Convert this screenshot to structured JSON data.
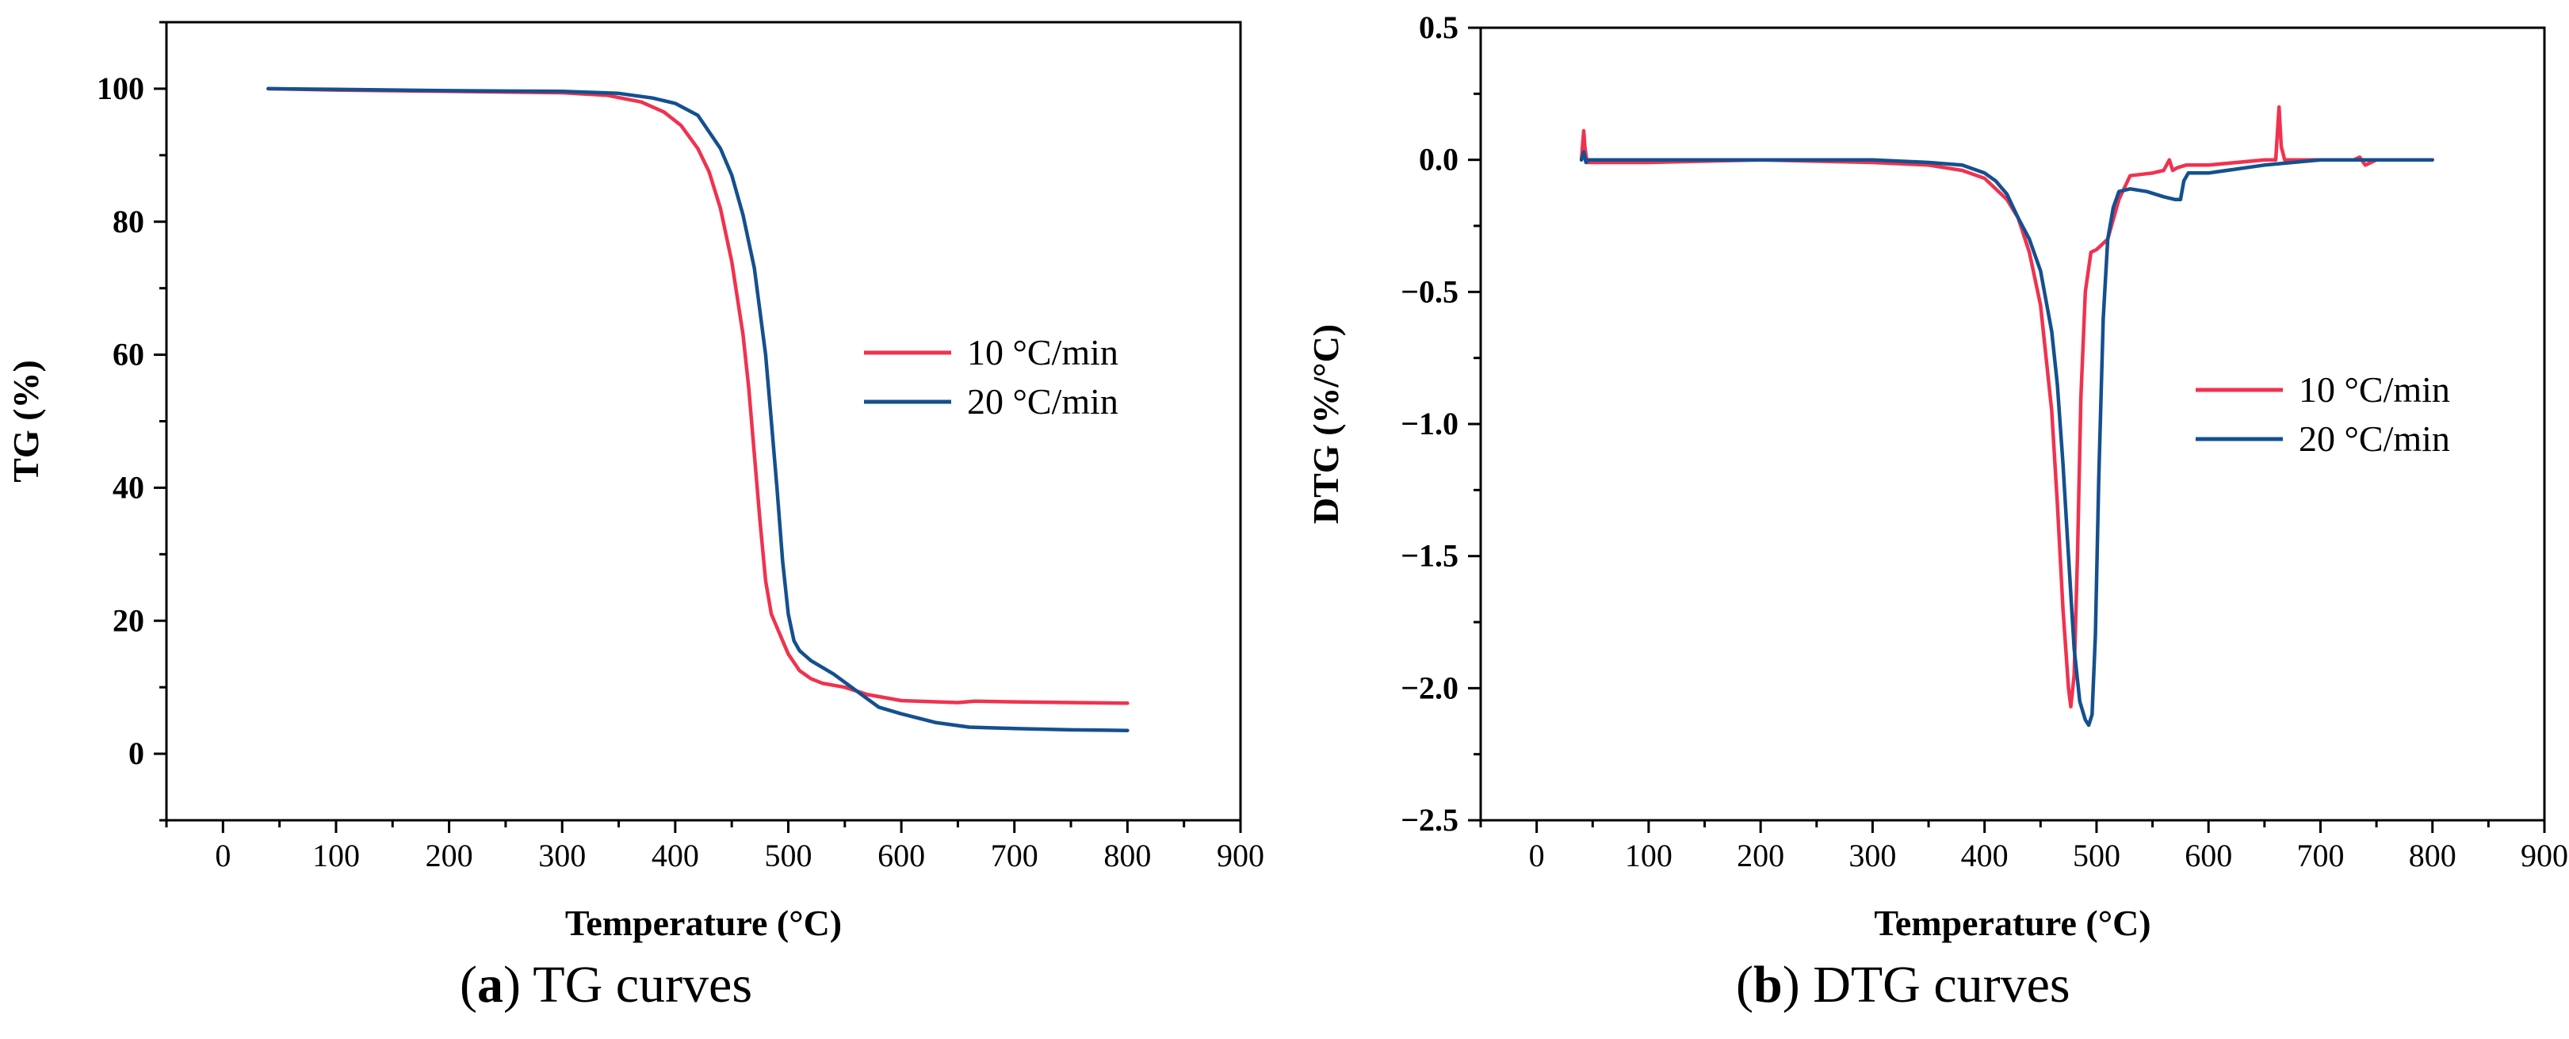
{
  "charts": [
    {
      "type": "line",
      "panel": "a",
      "ylabel": "TG (%)",
      "xlabel": "Temperature (°C)",
      "xlim": [
        -50,
        900
      ],
      "ylim": [
        -10,
        110
      ],
      "xticks": [
        0,
        100,
        200,
        300,
        400,
        500,
        600,
        700,
        800,
        900
      ],
      "yticks": [
        0,
        20,
        40,
        60,
        80,
        100
      ],
      "legend_location": "right-center",
      "series": [
        {
          "name": "10 °C/min",
          "color": "#f0324f",
          "x": [
            40,
            100,
            200,
            300,
            340,
            370,
            390,
            405,
            420,
            430,
            440,
            450,
            460,
            465,
            470,
            475,
            480,
            485,
            490,
            495,
            500,
            510,
            520,
            530,
            550,
            570,
            600,
            650,
            665,
            700,
            750,
            800
          ],
          "y": [
            100,
            99.8,
            99.6,
            99.4,
            99,
            98,
            96.5,
            94.5,
            91,
            87.5,
            82,
            74,
            63,
            55,
            45,
            35,
            26,
            21,
            19,
            17,
            15,
            12.5,
            11.3,
            10.6,
            10,
            8.9,
            8,
            7.7,
            7.9,
            7.8,
            7.7,
            7.6
          ]
        },
        {
          "name": "20 °C/min",
          "color": "#14508f",
          "x": [
            40,
            100,
            200,
            300,
            350,
            380,
            400,
            420,
            440,
            450,
            460,
            470,
            480,
            485,
            490,
            495,
            500,
            505,
            510,
            520,
            540,
            560,
            580,
            600,
            630,
            660,
            700,
            750,
            800
          ],
          "y": [
            100,
            99.9,
            99.7,
            99.6,
            99.3,
            98.6,
            97.8,
            96,
            91,
            87,
            81,
            73,
            60,
            50,
            40,
            29,
            21,
            17,
            15.5,
            14,
            12,
            9.5,
            7,
            6,
            4.7,
            4,
            3.8,
            3.6,
            3.5
          ]
        }
      ]
    },
    {
      "type": "line",
      "panel": "b",
      "ylabel": "DTG (%/°C)",
      "xlabel": "Temperature (°C)",
      "xlim": [
        -50,
        900
      ],
      "ylim": [
        -2.5,
        0.5
      ],
      "xticks": [
        0,
        100,
        200,
        300,
        400,
        500,
        600,
        700,
        800,
        900
      ],
      "yticks": [
        -2.5,
        -2.0,
        -1.5,
        -1.0,
        -0.5,
        0.0,
        0.5
      ],
      "legend_location": "right-center",
      "series": [
        {
          "name": "10 °C/min",
          "color": "#f0324f",
          "x": [
            40,
            42,
            43,
            45,
            48,
            100,
            200,
            300,
            350,
            380,
            400,
            420,
            430,
            440,
            450,
            460,
            465,
            470,
            475,
            477,
            480,
            483,
            486,
            490,
            495,
            500,
            510,
            520,
            530,
            550,
            560,
            565,
            568,
            572,
            580,
            600,
            650,
            660,
            663,
            665,
            668,
            680,
            700,
            730,
            735,
            740,
            750,
            800
          ],
          "y": [
            0,
            0.11,
            0.05,
            -0.01,
            -0.01,
            -0.01,
            0,
            -0.01,
            -0.02,
            -0.04,
            -0.07,
            -0.15,
            -0.22,
            -0.35,
            -0.55,
            -0.95,
            -1.3,
            -1.7,
            -2.0,
            -2.07,
            -1.95,
            -1.5,
            -0.9,
            -0.5,
            -0.35,
            -0.34,
            -0.3,
            -0.15,
            -0.06,
            -0.05,
            -0.04,
            0,
            -0.04,
            -0.03,
            -0.02,
            -0.02,
            0,
            0,
            0.2,
            0.05,
            0,
            0,
            0,
            0,
            0.01,
            -0.02,
            0,
            0
          ]
        },
        {
          "name": "20 °C/min",
          "color": "#14508f",
          "x": [
            40,
            42,
            44,
            46,
            100,
            200,
            300,
            350,
            380,
            400,
            410,
            420,
            430,
            440,
            450,
            460,
            465,
            470,
            475,
            480,
            485,
            490,
            493,
            496,
            499,
            502,
            506,
            510,
            515,
            520,
            530,
            545,
            560,
            570,
            575,
            578,
            582,
            600,
            650,
            700,
            750,
            800
          ],
          "y": [
            0,
            0.03,
            -0.01,
            0,
            0,
            0,
            0,
            -0.01,
            -0.02,
            -0.05,
            -0.08,
            -0.13,
            -0.22,
            -0.3,
            -0.42,
            -0.65,
            -0.85,
            -1.15,
            -1.5,
            -1.85,
            -2.05,
            -2.12,
            -2.14,
            -2.1,
            -1.8,
            -1.2,
            -0.6,
            -0.3,
            -0.18,
            -0.12,
            -0.11,
            -0.12,
            -0.14,
            -0.15,
            -0.15,
            -0.08,
            -0.05,
            -0.05,
            -0.02,
            0,
            0,
            0
          ]
        }
      ]
    }
  ],
  "captions": {
    "a": {
      "letter": "a",
      "text": " TG curves"
    },
    "b": {
      "letter": "b",
      "text": " DTG curves"
    }
  }
}
